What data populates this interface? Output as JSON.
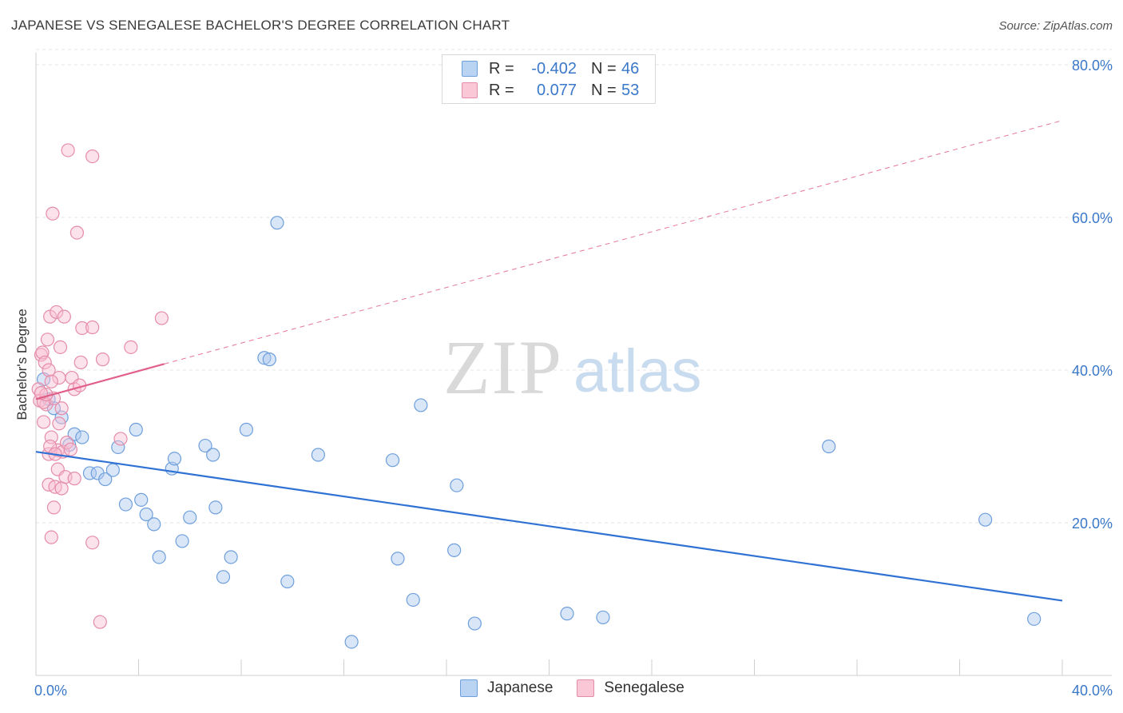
{
  "title": "JAPANESE VS SENEGALESE BACHELOR'S DEGREE CORRELATION CHART",
  "source": "Source: ZipAtlas.com",
  "watermark": {
    "zip": "ZIP",
    "atlas": "atlas"
  },
  "legend": {
    "rows": [
      {
        "series": "Japanese",
        "r_label": "R =",
        "r_value": "-0.402",
        "n_label": "N =",
        "n_value": "46",
        "fill": "#b9d3f3",
        "stroke": "#6e9fdc"
      },
      {
        "series": "Senegalese",
        "r_label": "R =",
        "r_value": "0.077",
        "n_label": "N =",
        "n_value": "53",
        "fill": "#f9c7d6",
        "stroke": "#e58ca8"
      }
    ]
  },
  "bottom_legend": [
    {
      "label": "Japanese",
      "fill": "#b9d3f3",
      "stroke": "#6e9fdc"
    },
    {
      "label": "Senegalese",
      "fill": "#f9c7d6",
      "stroke": "#e58ca8"
    }
  ],
  "colors": {
    "japanese_fill": "rgba(170,200,240,0.45)",
    "japanese_stroke": "#6e9fdc",
    "japanese_line": "#2f72d4",
    "senegalese_fill": "rgba(248,190,210,0.45)",
    "senegalese_stroke": "#e58ca8",
    "senegalese_line": "#e0608a",
    "tick_label": "#3a78c9",
    "grid": "#e6e6e6"
  },
  "chart_data": {
    "type": "scatter",
    "title": "JAPANESE VS SENEGALESE BACHELOR'S DEGREE CORRELATION CHART",
    "xlabel": "",
    "ylabel": "Bachelor's Degree",
    "xlim": [
      0,
      40
    ],
    "ylim": [
      0,
      82
    ],
    "x_tick_labels": [
      {
        "value": 0,
        "label": "0.0%"
      },
      {
        "value": 40,
        "label": "40.0%"
      }
    ],
    "y_tick_labels": [
      {
        "value": 20,
        "label": "20.0%"
      },
      {
        "value": 40,
        "label": "40.0%"
      },
      {
        "value": 60,
        "label": "60.0%"
      },
      {
        "value": 80,
        "label": "80.0%"
      }
    ],
    "grid": true,
    "series": [
      {
        "name": "Japanese",
        "points": [
          [
            0.3,
            38.8
          ],
          [
            0.5,
            36.2
          ],
          [
            0.7,
            35.0
          ],
          [
            1.0,
            33.8
          ],
          [
            1.3,
            30.2
          ],
          [
            1.5,
            31.6
          ],
          [
            1.8,
            31.2
          ],
          [
            2.1,
            26.5
          ],
          [
            2.4,
            26.5
          ],
          [
            2.7,
            25.7
          ],
          [
            3.0,
            26.9
          ],
          [
            3.2,
            29.9
          ],
          [
            3.5,
            22.4
          ],
          [
            3.9,
            32.2
          ],
          [
            4.1,
            23.0
          ],
          [
            4.3,
            21.1
          ],
          [
            4.6,
            19.8
          ],
          [
            4.8,
            15.5
          ],
          [
            5.3,
            27.1
          ],
          [
            5.4,
            28.4
          ],
          [
            5.7,
            17.6
          ],
          [
            6.0,
            20.7
          ],
          [
            6.6,
            30.1
          ],
          [
            6.9,
            28.9
          ],
          [
            7.0,
            22.0
          ],
          [
            7.3,
            12.9
          ],
          [
            7.6,
            15.5
          ],
          [
            8.2,
            32.2
          ],
          [
            8.9,
            41.6
          ],
          [
            9.1,
            41.4
          ],
          [
            9.4,
            59.3
          ],
          [
            9.8,
            12.3
          ],
          [
            11.0,
            28.9
          ],
          [
            12.3,
            4.4
          ],
          [
            13.9,
            28.2
          ],
          [
            14.1,
            15.3
          ],
          [
            14.7,
            9.9
          ],
          [
            15.0,
            35.4
          ],
          [
            16.3,
            16.4
          ],
          [
            16.4,
            24.9
          ],
          [
            17.1,
            6.8
          ],
          [
            20.7,
            8.1
          ],
          [
            22.1,
            7.6
          ],
          [
            30.9,
            30.0
          ],
          [
            37.0,
            20.4
          ],
          [
            38.9,
            7.4
          ]
        ]
      },
      {
        "name": "Senegalese",
        "points": [
          [
            0.1,
            37.5
          ],
          [
            0.15,
            36.0
          ],
          [
            0.2,
            42.0
          ],
          [
            0.25,
            42.3
          ],
          [
            0.3,
            33.2
          ],
          [
            0.35,
            41.0
          ],
          [
            0.4,
            35.5
          ],
          [
            0.45,
            44.0
          ],
          [
            0.5,
            25.0
          ],
          [
            0.5,
            29.0
          ],
          [
            0.55,
            47.0
          ],
          [
            0.6,
            31.2
          ],
          [
            0.6,
            18.1
          ],
          [
            0.65,
            60.5
          ],
          [
            0.7,
            22.0
          ],
          [
            0.7,
            36.3
          ],
          [
            0.75,
            24.7
          ],
          [
            0.8,
            47.6
          ],
          [
            0.85,
            27.0
          ],
          [
            0.85,
            29.5
          ],
          [
            0.9,
            39.0
          ],
          [
            0.95,
            43.0
          ],
          [
            1.0,
            24.5
          ],
          [
            1.0,
            35.0
          ],
          [
            1.05,
            29.3
          ],
          [
            1.1,
            47.0
          ],
          [
            1.15,
            26.0
          ],
          [
            1.2,
            30.5
          ],
          [
            1.25,
            68.8
          ],
          [
            1.35,
            29.6
          ],
          [
            1.4,
            39.0
          ],
          [
            1.5,
            37.5
          ],
          [
            1.5,
            25.8
          ],
          [
            1.6,
            58.0
          ],
          [
            1.7,
            38.0
          ],
          [
            1.75,
            41.0
          ],
          [
            1.8,
            45.5
          ],
          [
            2.2,
            68.0
          ],
          [
            2.2,
            45.6
          ],
          [
            2.2,
            17.4
          ],
          [
            2.5,
            7.0
          ],
          [
            2.6,
            41.4
          ],
          [
            3.3,
            31.0
          ],
          [
            3.7,
            43.0
          ],
          [
            4.9,
            46.8
          ],
          [
            0.3,
            35.8
          ],
          [
            0.4,
            36.8
          ],
          [
            0.5,
            40.0
          ],
          [
            0.6,
            38.5
          ],
          [
            0.2,
            37.0
          ],
          [
            0.9,
            33.0
          ],
          [
            0.55,
            30.0
          ],
          [
            0.75,
            29.0
          ]
        ]
      }
    ],
    "trend_lines": [
      {
        "series": "Japanese",
        "style": "solid",
        "x": [
          0,
          40
        ],
        "y": [
          29.3,
          9.8
        ]
      },
      {
        "series": "Senegalese",
        "style": "solid",
        "x": [
          0,
          5
        ],
        "y": [
          36.2,
          40.8
        ]
      },
      {
        "series": "Senegalese",
        "style": "dashed",
        "x": [
          5,
          40
        ],
        "y": [
          40.8,
          72.7
        ]
      }
    ]
  }
}
